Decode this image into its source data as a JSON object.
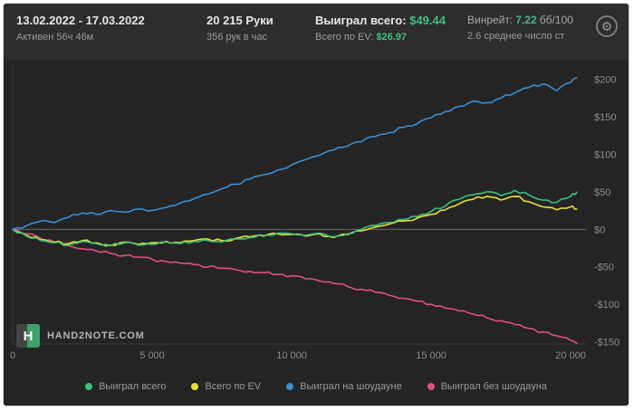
{
  "header": {
    "period": {
      "title": "13.02.2022 - 17.03.2022",
      "subtitle": "Активен 56ч 46м"
    },
    "hands": {
      "title": "20 215 Руки",
      "subtitle": "356 рук в час"
    },
    "won": {
      "label": "Выиграл всего:",
      "value": "$49.44",
      "ev_label": "Всего по EV:",
      "ev_value": "$26.97"
    },
    "winrate": {
      "label": "Винрейт:",
      "value": "7.22",
      "unit": "бб/100",
      "subtitle": "2.6 среднее число ст"
    },
    "gear_icon": "⚙"
  },
  "logo": {
    "letter": "H",
    "text": "HAND2NOTE.COM"
  },
  "chart_data": {
    "type": "line",
    "title": "",
    "xlabel": "",
    "ylabel": "",
    "x_max": 20580,
    "y_domain": [
      -153,
      219
    ],
    "grid": "zero-line-only",
    "legend_position": "bottom",
    "x_ticks": [
      {
        "v": 0,
        "label": "0"
      },
      {
        "v": 5000,
        "label": "5 000"
      },
      {
        "v": 10000,
        "label": "10 000"
      },
      {
        "v": 15000,
        "label": "15 000"
      },
      {
        "v": 20000,
        "label": "20 000"
      }
    ],
    "y_ticks": [
      {
        "v": 200,
        "label": "$200"
      },
      {
        "v": 150,
        "label": "$150"
      },
      {
        "v": 100,
        "label": "$100"
      },
      {
        "v": 50,
        "label": "$50"
      },
      {
        "v": 0,
        "label": "$0"
      },
      {
        "v": -50,
        "label": "-$50"
      },
      {
        "v": -100,
        "label": "-$100"
      },
      {
        "v": -150,
        "label": "-$150"
      }
    ],
    "x": [
      0,
      500,
      1000,
      1500,
      2000,
      2500,
      3000,
      3500,
      4000,
      4500,
      5000,
      5500,
      6000,
      6500,
      7000,
      7500,
      8000,
      8500,
      9000,
      9500,
      10000,
      10500,
      11000,
      11500,
      12000,
      12500,
      13000,
      13500,
      14000,
      14500,
      15000,
      15500,
      16000,
      16500,
      17000,
      17500,
      18000,
      18500,
      19000,
      19500,
      20000,
      20215
    ],
    "series": [
      {
        "name": "Выиграл без шоудауна",
        "color": "#e0507a",
        "final_value": -152,
        "values": [
          0,
          -6,
          -12,
          -17,
          -22,
          -26,
          -29,
          -32,
          -35,
          -37,
          -40,
          -43,
          -45,
          -47,
          -50,
          -52,
          -54,
          -56,
          -58,
          -60,
          -62,
          -66,
          -69,
          -72,
          -76,
          -80,
          -84,
          -88,
          -92,
          -96,
          -100,
          -105,
          -109,
          -113,
          -118,
          -122,
          -127,
          -132,
          -137,
          -142,
          -148,
          -152
        ]
      },
      {
        "name": "Всего по EV",
        "color": "#e6e13c",
        "final_value": 26.97,
        "values": [
          0,
          -8,
          -14,
          -17,
          -19,
          -15,
          -18,
          -21,
          -17,
          -20,
          -18,
          -16,
          -18,
          -15,
          -13,
          -15,
          -12,
          -10,
          -9,
          -6,
          -7,
          -9,
          -6,
          -11,
          -7,
          -2,
          3,
          7,
          11,
          15,
          20,
          26,
          34,
          40,
          44,
          39,
          44,
          37,
          30,
          26,
          30,
          26.97
        ]
      },
      {
        "name": "Выиграл всего",
        "color": "#3fbf7c",
        "final_value": 49.44,
        "values": [
          0,
          -9,
          -15,
          -18,
          -21,
          -16,
          -19,
          -22,
          -18,
          -21,
          -20,
          -17,
          -19,
          -16,
          -15,
          -17,
          -13,
          -11,
          -8,
          -5,
          -6,
          -8,
          -5,
          -10,
          -6,
          0,
          5,
          9,
          13,
          17,
          24,
          31,
          40,
          46,
          50,
          45,
          52,
          46,
          39,
          36,
          44,
          49.44
        ]
      },
      {
        "name": "Выиграл на шоудауне",
        "color": "#3e8ed0",
        "final_value": 202,
        "values": [
          0,
          5,
          11,
          9,
          16,
          22,
          20,
          25,
          23,
          27,
          25,
          29,
          35,
          41,
          47,
          54,
          60,
          67,
          73,
          79,
          86,
          93,
          99,
          106,
          111,
          117,
          124,
          129,
          136,
          141,
          149,
          157,
          164,
          171,
          169,
          175,
          182,
          189,
          194,
          185,
          196,
          202
        ]
      }
    ],
    "legend": [
      "Выиграл всего",
      "Всего по EV",
      "Выиграл на шоудауне",
      "Выиграл без шоудауна"
    ]
  }
}
